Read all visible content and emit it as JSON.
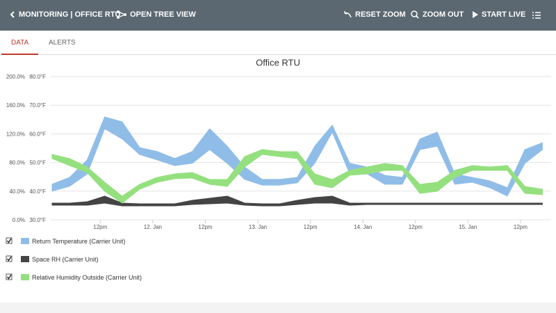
{
  "header": {
    "title": "MONITORING | OFFICE RTU",
    "tree_view": "OPEN TREE VIEW",
    "reset_zoom": "RESET ZOOM",
    "zoom_out": "ZOOM OUT",
    "start_live": "START LIVE"
  },
  "tabs": [
    "DATA",
    "ALERTS"
  ],
  "chart_data": {
    "type": "arearange",
    "title": "Office RTU",
    "x": [
      "11. Jan 01:00",
      "11. Jan 05:00",
      "11. Jan 09:00",
      "11. Jan 13:00",
      "11. Jan 17:00",
      "11. Jan 21:00",
      "12. Jan 01:00",
      "12. Jan 05:00",
      "12. Jan 09:00",
      "12. Jan 13:00",
      "12. Jan 17:00",
      "12. Jan 21:00",
      "13. Jan 01:00",
      "13. Jan 05:00",
      "13. Jan 09:00",
      "13. Jan 13:00",
      "13. Jan 17:00",
      "13. Jan 21:00",
      "14. Jan 01:00",
      "14. Jan 05:00",
      "14. Jan 09:00",
      "14. Jan 13:00",
      "14. Jan 17:00",
      "14. Jan 21:00",
      "15. Jan 01:00",
      "15. Jan 05:00",
      "15. Jan 09:00",
      "15. Jan 13:00",
      "15. Jan 17:00"
    ],
    "xlim": [
      "11. Jan 01:00",
      "15. Jan 19:00"
    ],
    "xticks": [
      {
        "value": "11. Jan 12:00",
        "label": "12pm"
      },
      {
        "value": "12. Jan 00:00",
        "label": "12. Jan"
      },
      {
        "value": "12. Jan 12:00",
        "label": "12pm"
      },
      {
        "value": "13. Jan 00:00",
        "label": "13. Jan"
      },
      {
        "value": "13. Jan 12:00",
        "label": "12pm"
      },
      {
        "value": "14. Jan 00:00",
        "label": "14. Jan"
      },
      {
        "value": "14. Jan 12:00",
        "label": "12pm"
      },
      {
        "value": "15. Jan 00:00",
        "label": "15. Jan"
      },
      {
        "value": "15. Jan 12:00",
        "label": "12pm"
      }
    ],
    "ylim": [
      0,
      200
    ],
    "yticks": [
      {
        "value": 0,
        "label": "0.0%"
      },
      {
        "value": 40,
        "label": "40.0%"
      },
      {
        "value": 80,
        "label": "80.0%"
      },
      {
        "value": 120,
        "label": "120.0%"
      },
      {
        "value": 160,
        "label": "160.0%"
      },
      {
        "value": 200,
        "label": "200.0%"
      }
    ],
    "y2lim": [
      30,
      80
    ],
    "y2ticks": [
      {
        "value": 30,
        "label": "30.0°F"
      },
      {
        "value": 40,
        "label": "40.0°F"
      },
      {
        "value": 50,
        "label": "50.0°F"
      },
      {
        "value": 60,
        "label": "60.0°F"
      },
      {
        "value": 70,
        "label": "70.0°F"
      },
      {
        "value": 80,
        "label": "80.0°F"
      }
    ],
    "grid": true,
    "series": [
      {
        "name": "Return Temperature (Carrier Unit)",
        "color": "#90bde8",
        "axis": "y2",
        "high": [
          42.4,
          44.8,
          50.9,
          65.9,
          64.2,
          55.2,
          53.8,
          51.4,
          53.8,
          61.8,
          55.7,
          48.4,
          44.1,
          44.1,
          44.8,
          55.7,
          63.0,
          49.7,
          48.4,
          45.5,
          44.8,
          58.2,
          60.6,
          46.0,
          44.8,
          43.6,
          41.2,
          54.5,
          56.9
        ],
        "low": [
          40.0,
          41.7,
          46.0,
          61.8,
          58.2,
          52.8,
          50.9,
          48.9,
          49.7,
          54.5,
          49.7,
          44.1,
          42.1,
          42.1,
          42.9,
          49.7,
          60.6,
          46.0,
          46.0,
          42.4,
          42.4,
          54.5,
          55.7,
          42.4,
          43.1,
          41.2,
          38.3,
          49.7,
          54.5
        ]
      },
      {
        "name": "Space RH (Carrier Unit)",
        "color": "#444444",
        "axis": "y",
        "high": [
          23.3,
          23.3,
          25.2,
          33.0,
          23.3,
          22.3,
          22.3,
          22.3,
          27.2,
          30.1,
          33.0,
          23.3,
          22.3,
          22.3,
          27.2,
          31.1,
          33.0,
          23.3,
          23.3,
          23.3,
          23.3,
          23.3,
          23.3,
          23.3,
          23.3,
          23.3,
          23.3,
          23.3,
          23.3
        ],
        "low": [
          20.4,
          20.4,
          20.4,
          23.3,
          19.4,
          19.4,
          19.4,
          19.4,
          21.4,
          22.3,
          23.3,
          20.4,
          19.4,
          19.4,
          21.4,
          23.3,
          23.3,
          20.4,
          21.4,
          21.4,
          21.4,
          21.4,
          21.4,
          21.4,
          21.4,
          21.4,
          21.4,
          21.4,
          21.4
        ]
      },
      {
        "name": "Relative Humidity Outside (Carrier Unit)",
        "color": "#94e07e",
        "axis": "y",
        "high": [
          91.3,
          85.4,
          73.8,
          52.4,
          33.0,
          49.5,
          59.2,
          64.1,
          66.0,
          56.3,
          56.3,
          88.3,
          98.1,
          95.1,
          95.1,
          64.1,
          56.3,
          68.9,
          73.8,
          78.6,
          75.7,
          49.5,
          52.4,
          68.9,
          75.7,
          73.8,
          75.7,
          46.6,
          42.7
        ],
        "low": [
          85.4,
          75.7,
          66.0,
          39.8,
          23.3,
          42.7,
          52.4,
          57.3,
          58.3,
          49.5,
          46.6,
          73.8,
          91.3,
          88.3,
          85.4,
          49.5,
          44.7,
          62.1,
          64.1,
          68.9,
          68.9,
          36.9,
          39.8,
          59.2,
          68.9,
          68.9,
          68.9,
          36.9,
          35.0
        ]
      }
    ]
  }
}
